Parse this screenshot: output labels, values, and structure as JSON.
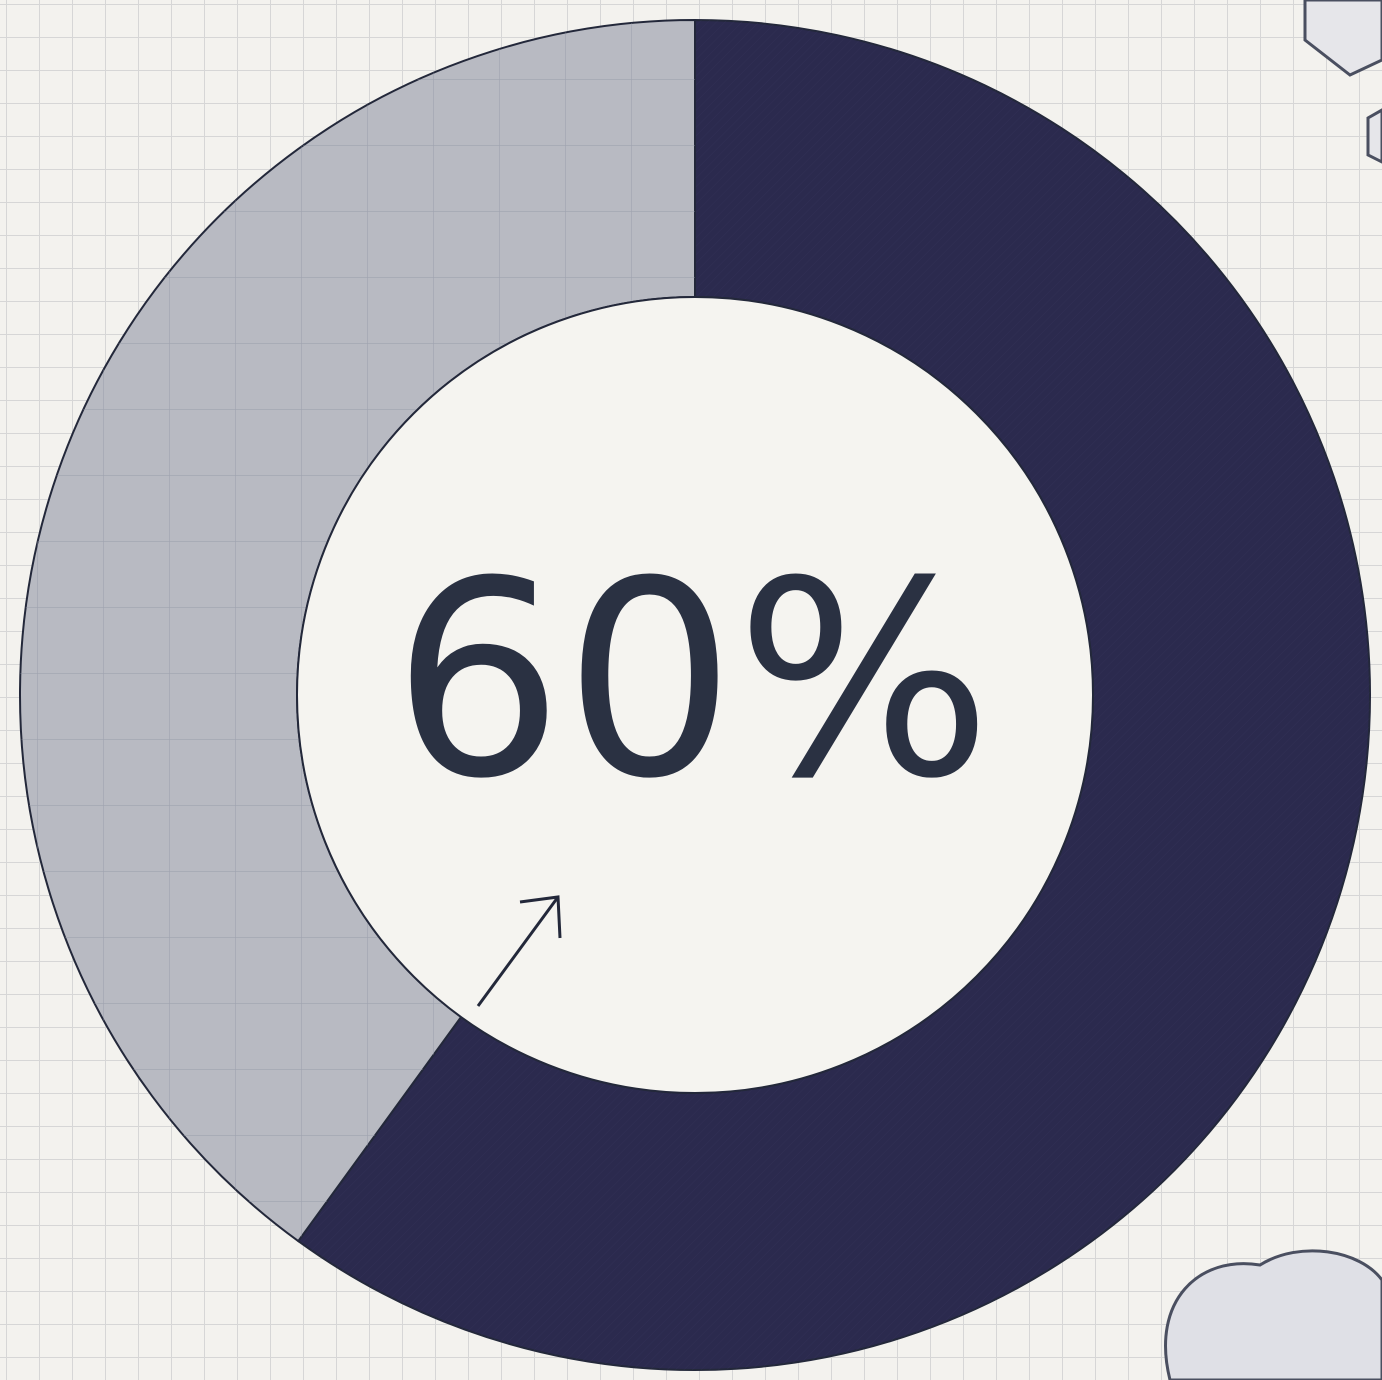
{
  "chart_data": {
    "type": "donut",
    "values": [
      60,
      40
    ],
    "colors": [
      "#2b2a4e",
      "#b8bac2"
    ],
    "center_label": "60%",
    "start_angle": 0,
    "direction": "clockwise"
  }
}
